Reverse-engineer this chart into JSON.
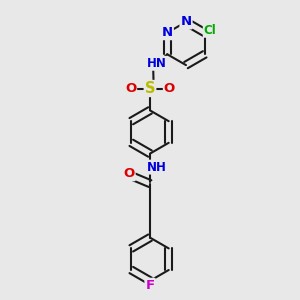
{
  "bg_color": "#e8e8e8",
  "bond_color": "#1a1a1a",
  "bond_width": 1.5,
  "atom_colors": {
    "N": "#0000dd",
    "O": "#dd0000",
    "S": "#bbbb00",
    "Cl": "#00aa00",
    "F": "#cc00cc",
    "C": "#1a1a1a"
  },
  "font_size": 8.5,
  "fig_size": [
    3.0,
    3.0
  ],
  "dpi": 100,
  "xlim": [
    0,
    10
  ],
  "ylim": [
    0,
    10
  ]
}
